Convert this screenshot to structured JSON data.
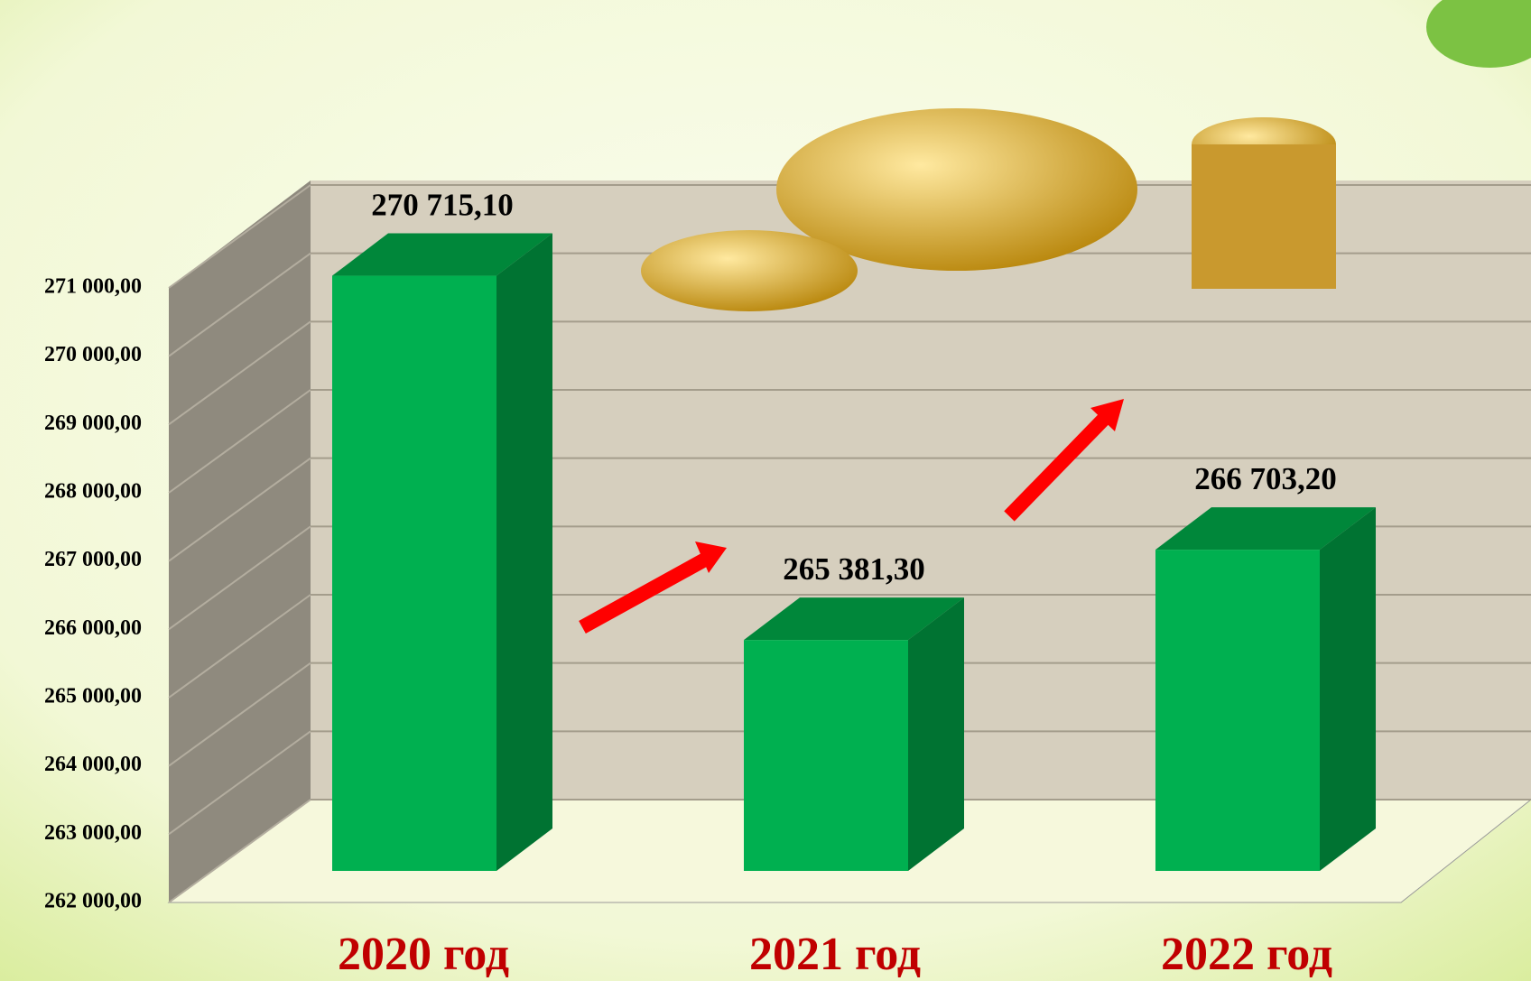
{
  "chart_data": {
    "type": "bar3d",
    "categories": [
      "2020 год",
      "2021 год",
      "2022 год"
    ],
    "values": [
      270715.1,
      265381.3,
      266703.2
    ],
    "value_labels": [
      "270 715,10",
      "265 381,30",
      "266 703,20"
    ],
    "color": "#00b050",
    "ylim": [
      262000,
      271000
    ],
    "yticks": [
      {
        "value": 262000,
        "label": "262 000,00"
      },
      {
        "value": 263000,
        "label": "263 000,00"
      },
      {
        "value": 264000,
        "label": "264 000,00"
      },
      {
        "value": 265000,
        "label": "265 000,00"
      },
      {
        "value": 266000,
        "label": "266 000,00"
      },
      {
        "value": 267000,
        "label": "267 000,00"
      },
      {
        "value": 268000,
        "label": "268 000,00"
      },
      {
        "value": 269000,
        "label": "269 000,00"
      },
      {
        "value": 270000,
        "label": "270 000,00"
      },
      {
        "value": 271000,
        "label": "271 000,00"
      }
    ],
    "grid": true
  }
}
